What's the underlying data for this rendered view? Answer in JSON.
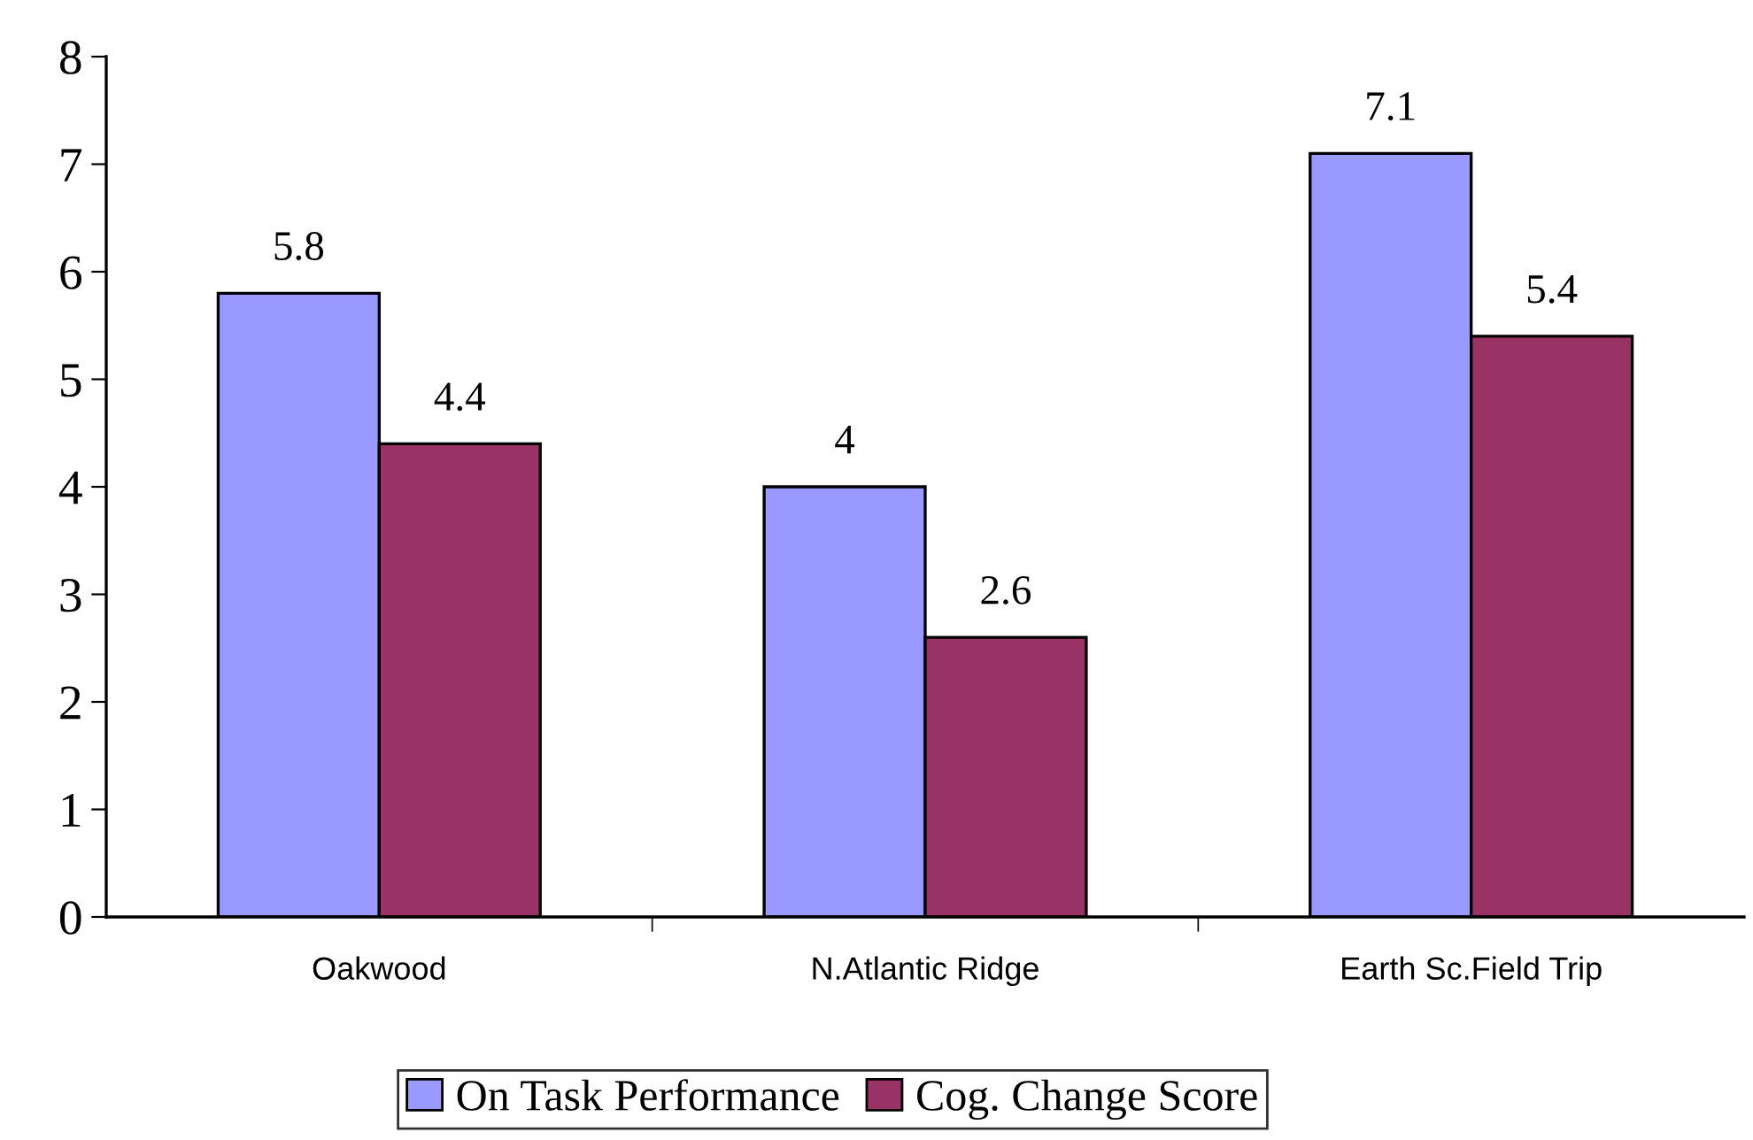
{
  "chart_data": {
    "type": "bar",
    "categories": [
      "Oakwood",
      "N.Atlantic Ridge",
      "Earth Sc.Field Trip"
    ],
    "series": [
      {
        "name": "On Task Performance",
        "color": "#9999ff",
        "values": [
          5.8,
          4,
          7.1
        ]
      },
      {
        "name": "Cog. Change Score",
        "color": "#993366",
        "values": [
          4.4,
          2.6,
          5.4
        ]
      }
    ],
    "ylim": [
      0,
      8
    ],
    "yticks": [
      0,
      1,
      2,
      3,
      4,
      5,
      6,
      7,
      8
    ],
    "grid": false,
    "legend": "bottom",
    "data_labels": true
  }
}
